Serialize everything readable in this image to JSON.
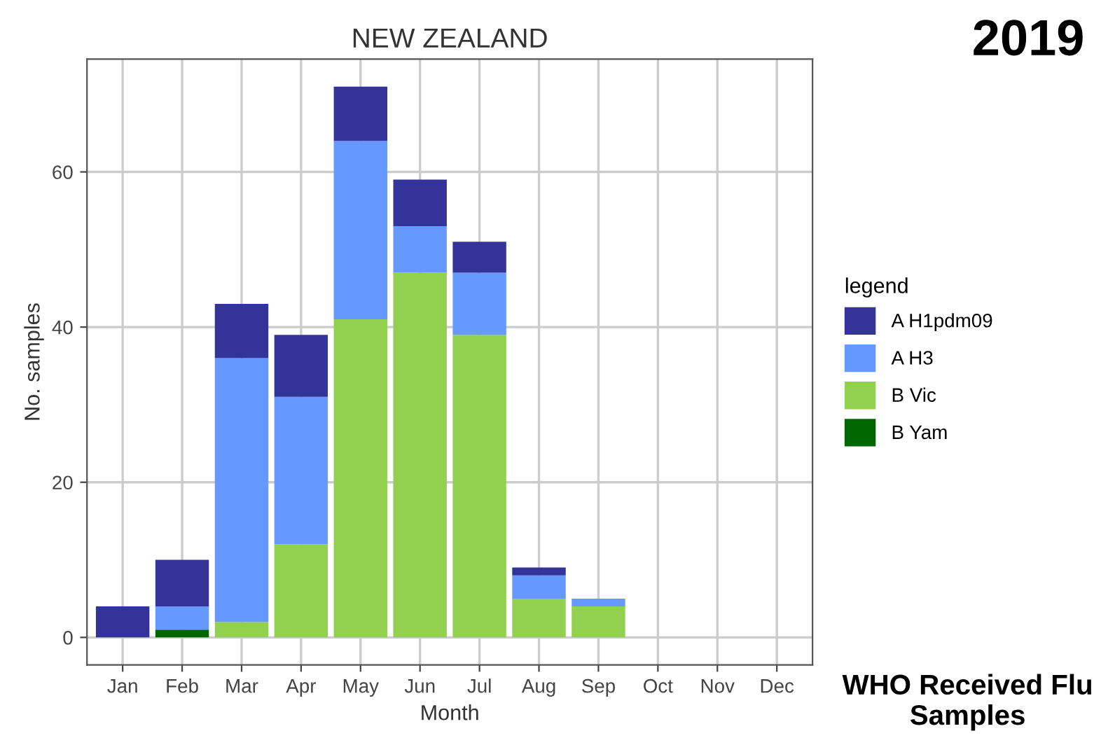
{
  "chart_data": {
    "type": "bar",
    "title": "NEW ZEALAND",
    "xlabel": "Month",
    "ylabel": "No. samples",
    "legend_title": "legend",
    "categories": [
      "Jan",
      "Feb",
      "Mar",
      "Apr",
      "May",
      "Jun",
      "Jul",
      "Aug",
      "Sep",
      "Oct",
      "Nov",
      "Dec"
    ],
    "stacked": true,
    "series": [
      {
        "name": "B Yam",
        "color": "#006600",
        "values": [
          0,
          1,
          0,
          0,
          0,
          0,
          0,
          0,
          0,
          0,
          0,
          0
        ]
      },
      {
        "name": "B Vic",
        "color": "#92d050",
        "values": [
          0,
          0,
          2,
          12,
          41,
          47,
          39,
          5,
          4,
          0,
          0,
          0
        ]
      },
      {
        "name": "A H3",
        "color": "#6699ff",
        "values": [
          0,
          3,
          34,
          19,
          23,
          6,
          8,
          3,
          1,
          0,
          0,
          0
        ]
      },
      {
        "name": "A H1pdm09",
        "color": "#333399",
        "values": [
          4,
          6,
          7,
          8,
          7,
          6,
          4,
          1,
          0,
          0,
          0,
          0
        ]
      }
    ],
    "ylim": [
      -3.55,
      74.55
    ],
    "yticks": [
      0,
      20,
      40,
      60
    ],
    "grid": true,
    "legend": "right",
    "annotations": [
      "2019",
      "WHO Received Flu Samples"
    ]
  }
}
